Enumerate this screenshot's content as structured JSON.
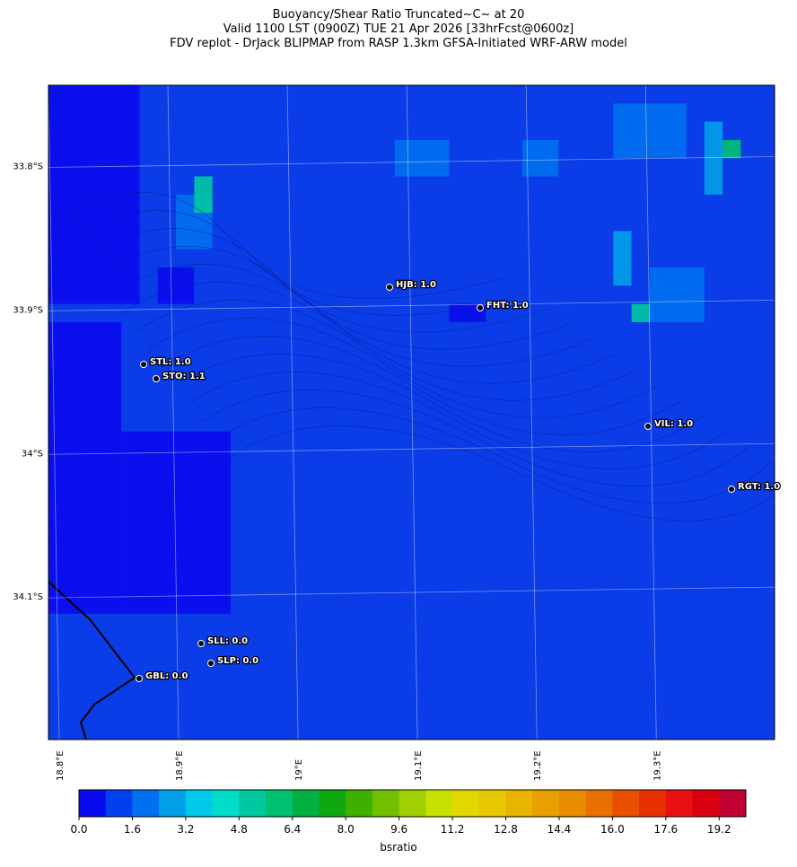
{
  "header": {
    "title_lines": [
      "Buoyancy/Shear Ratio Truncated~C~    at 20",
      "Valid 1100 LST (0900Z) TUE 21 Apr 2026 [33hrFcst@0600z]",
      "FDV replot - DrJack BLIPMAP from RASP 1.3km GFSA-Initiated WRF-ARW model"
    ]
  },
  "map": {
    "lonlim": [
      18.791,
      19.399
    ],
    "latlim": [
      -34.2,
      -33.744
    ],
    "lat_ticks": [
      {
        "value": -33.8,
        "label": "33.8°S"
      },
      {
        "value": -33.9,
        "label": "33.9°S"
      },
      {
        "value": -34,
        "label": "34°S"
      },
      {
        "value": -34.1,
        "label": "34.1°S"
      }
    ],
    "lon_ticks": [
      {
        "value": 18.8,
        "label": "18.8°E"
      },
      {
        "value": 18.9,
        "label": "18.9°E"
      },
      {
        "value": 19,
        "label": "19°E"
      },
      {
        "value": 19.1,
        "label": "19.1°E"
      },
      {
        "value": 19.2,
        "label": "19.2°E"
      },
      {
        "value": 19.3,
        "label": "19.3°E"
      }
    ],
    "stations": [
      "HJB: 1.0",
      "FHT: 1.0",
      "STL: 1.0",
      "STO: 1.1",
      "VIL: 1.0",
      "RGT: 1.0",
      "SLL: 0.0",
      "SLP: 0.0",
      "GBL: 0.0"
    ]
  },
  "colorbar": {
    "range": [
      0,
      20
    ],
    "label": "bsratio",
    "colors": [
      "#0a0aee",
      "#0040ee",
      "#0070f0",
      "#00a0e8",
      "#00c8e8",
      "#00dcc8",
      "#00c8a0",
      "#00c070",
      "#00b040",
      "#10a810",
      "#40b000",
      "#70c000",
      "#a0d000",
      "#c8e000",
      "#e0d800",
      "#e8c800",
      "#e8b400",
      "#e8a000",
      "#e88c00",
      "#e87000",
      "#e85000",
      "#e83000",
      "#e81010",
      "#d80010",
      "#c00030"
    ],
    "ticks": [
      {
        "value": 0,
        "label": "0.0"
      },
      {
        "value": 1.6,
        "label": "1.6"
      },
      {
        "value": 3.2,
        "label": "3.2"
      },
      {
        "value": 4.8,
        "label": "4.8"
      },
      {
        "value": 6.4,
        "label": "6.4"
      },
      {
        "value": 8,
        "label": "8.0"
      },
      {
        "value": 9.6,
        "label": "9.6"
      },
      {
        "value": 11.2,
        "label": "11.2"
      },
      {
        "value": 12.8,
        "label": "12.8"
      },
      {
        "value": 14.4,
        "label": "14.4"
      },
      {
        "value": 16,
        "label": "16.0"
      },
      {
        "value": 17.6,
        "label": "17.6"
      },
      {
        "value": 19.2,
        "label": "19.2"
      }
    ]
  }
}
